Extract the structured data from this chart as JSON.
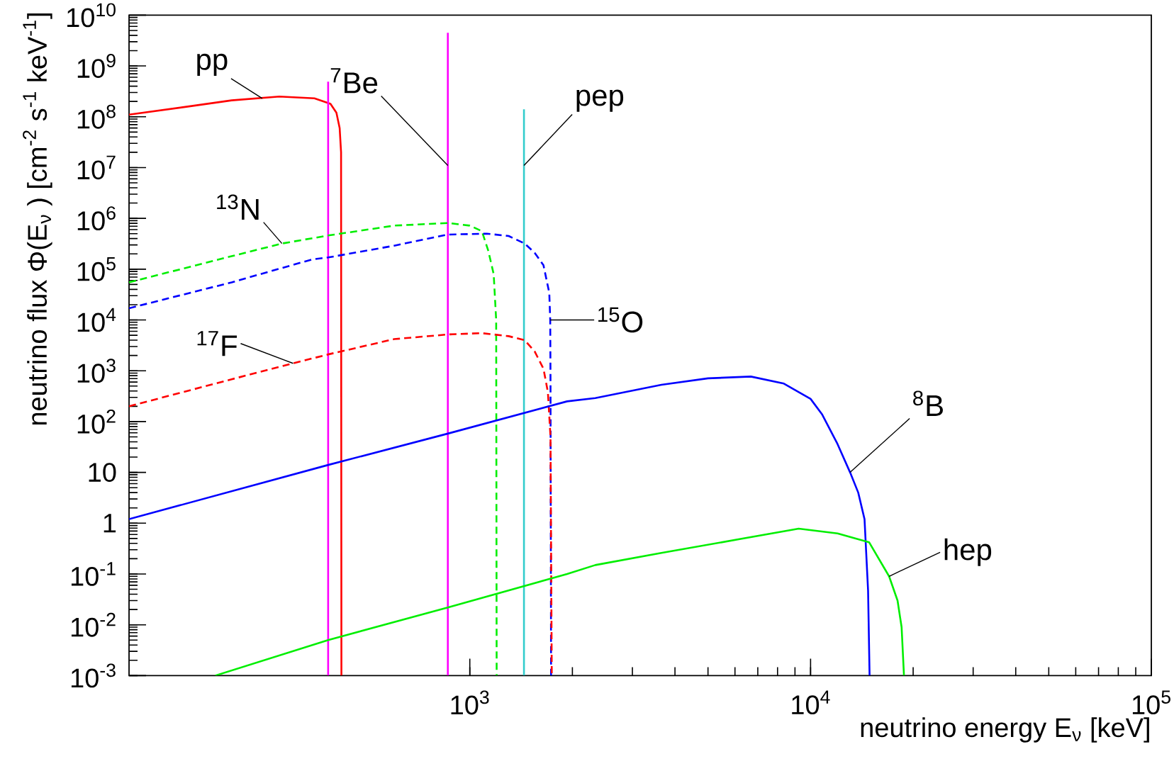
{
  "chart_data": {
    "type": "line",
    "xlabel": "neutrino energy E$_{ν}$ [keV]",
    "ylabel": "neutrino flux Φ(E$_{ν}$ ) [cm$^{-2}$ s$^{-1}$ keV$^{-1}$]",
    "log": "xy",
    "grid": false,
    "marker": "none",
    "xlim": [
      100,
      100000
    ],
    "ylim": [
      0.001,
      10000000000
    ],
    "xticks": [
      {
        "value": 1000,
        "label": "10$^{3}$"
      },
      {
        "value": 10000,
        "label": "10$^{4}$"
      },
      {
        "value": 100000,
        "label": "10$^{5}$"
      }
    ],
    "yticks": [
      {
        "value": 0.001,
        "label": "10$^{-3}$"
      },
      {
        "value": 0.01,
        "label": "10$^{-2}$"
      },
      {
        "value": 0.1,
        "label": "10$^{-1}$"
      },
      1,
      10,
      {
        "value": 100,
        "label": "10$^{2}$"
      },
      {
        "value": 1000,
        "label": "10$^{3}$"
      },
      {
        "value": 10000,
        "label": "10$^{4}$"
      },
      {
        "value": 100000,
        "label": "10$^{5}$"
      },
      {
        "value": 1000000,
        "label": "10$^{6}$"
      },
      {
        "value": 10000000,
        "label": "10$^{7}$"
      },
      {
        "value": 100000000,
        "label": "10$^{8}$"
      },
      {
        "value": 1000000000,
        "label": "10$^{9}$"
      },
      {
        "value": 10000000000,
        "label": "10$^{10}$"
      }
    ],
    "series": [
      {
        "color": "#ff0000",
        "line_style": "solid",
        "x": [
          100,
          150,
          200,
          276,
          350,
          390,
          406,
          415,
          419,
          420
        ],
        "values": [
          110000000.0,
          160000000.0,
          210000000.0,
          250000000.0,
          230000000.0,
          180000000.0,
          120000000.0,
          60000000.0,
          20000000.0,
          0.001
        ]
      },
      {
        "color": "#ff00ff",
        "line_style": "solid",
        "x": [
          384,
          384
        ],
        "values": [
          0.001,
          490000000.0
        ]
      },
      {
        "color": "#ff00ff",
        "line_style": "solid",
        "x": [
          862,
          862
        ],
        "values": [
          0.001,
          4500000000.0
        ]
      },
      {
        "color": "#33cccc",
        "line_style": "solid",
        "x": [
          1442,
          1442
        ],
        "values": [
          0.001,
          140000000.0
        ]
      },
      {
        "color": "#00ee00",
        "line_style": "dashed",
        "x": [
          100,
          200,
          281,
          384,
          600,
          867,
          1000,
          1085,
          1133,
          1175,
          1195,
          1199
        ],
        "values": [
          55000.0,
          180000.0,
          320000.0,
          460000.0,
          720000.0,
          810000.0,
          720000.0,
          560000.0,
          230000.0,
          80000.0,
          10000.0,
          0.001
        ]
      },
      {
        "color": "#0000ff",
        "line_style": "dashed",
        "x": [
          100,
          200,
          344,
          384,
          600,
          862,
          1122,
          1300,
          1448,
          1550,
          1645,
          1711,
          1722,
          1725,
          1732
        ],
        "values": [
          17000.0,
          55000.0,
          155000.0,
          170000.0,
          290000.0,
          480000.0,
          500000.0,
          450000.0,
          320000.0,
          210000.0,
          120000.0,
          34000.0,
          10000,
          700,
          0.001
        ]
      },
      {
        "color": "#ff0000",
        "line_style": "dashed",
        "x": [
          100,
          200,
          303,
          384,
          600,
          867,
          1085,
          1300,
          1448,
          1550,
          1645,
          1695,
          1725,
          1740
        ],
        "values": [
          200,
          680,
          1400,
          2100,
          4200,
          5200,
          5500,
          4800,
          4000,
          2400,
          1100,
          380,
          50,
          0.001
        ]
      },
      {
        "color": "#0000ff",
        "line_style": "solid",
        "x": [
          100,
          384,
          862,
          1930,
          2335,
          3650,
          5000,
          6680,
          8350,
          10000,
          10800,
          12000,
          13060,
          13800,
          14400,
          14750,
          14900
        ],
        "values": [
          1.2,
          14,
          58,
          250,
          290,
          530,
          710,
          770,
          560,
          280,
          140,
          36,
          10,
          4,
          1.2,
          0.047,
          0.001
        ]
      },
      {
        "color": "#00ee00",
        "line_style": "solid",
        "x": [
          179,
          384,
          862,
          1930,
          2335,
          3650,
          9230,
          12000,
          14860,
          17000,
          18000,
          18500,
          18800
        ],
        "values": [
          0.001,
          0.005,
          0.022,
          0.1,
          0.15,
          0.26,
          0.78,
          0.63,
          0.42,
          0.09,
          0.03,
          0.009,
          0.001
        ]
      }
    ],
    "annotations": [
      {
        "text": "pp",
        "x": 246,
        "y": 230000000.0
      },
      {
        "text": "$^{7}$Be",
        "x": 862,
        "y": 11000000.0
      },
      {
        "text": "pep",
        "x": 1442,
        "y": 11000000.0
      },
      {
        "text": "$^{13}$N",
        "x": 281,
        "y": 320000.0
      },
      {
        "text": "$^{15}$O",
        "x": 1722,
        "y": 10000
      },
      {
        "text": "$^{17}$F",
        "x": 303,
        "y": 1400
      },
      {
        "text": "$^{8}$B",
        "x": 13060,
        "y": 10
      },
      {
        "text": "hep",
        "x": 17000,
        "y": 0.09
      }
    ]
  }
}
